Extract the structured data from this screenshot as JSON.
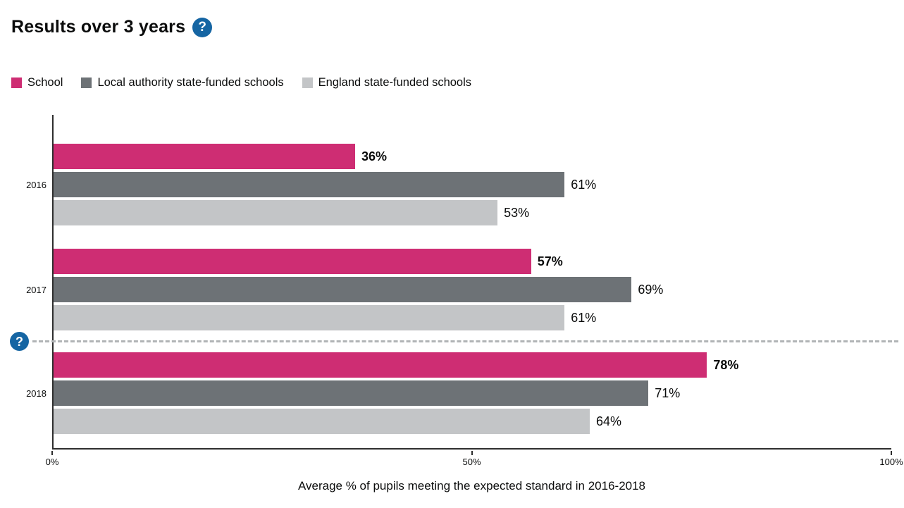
{
  "title": "Results over 3 years",
  "icons": {
    "help_glyph": "?"
  },
  "colors": {
    "accent_blue": "#1565a3",
    "text": "#0b0c0c",
    "axis": "#2e2e2e",
    "separator_gray": "#b1b4b6"
  },
  "legend": [
    {
      "label": "School",
      "color": "#ce2d73"
    },
    {
      "label": "Local authority state-funded schools",
      "color": "#6d7276"
    },
    {
      "label": "England state-funded schools",
      "color": "#c3c5c7"
    }
  ],
  "chart_data": {
    "type": "bar",
    "orientation": "horizontal",
    "title": "Results over 3 years",
    "categories": [
      "2016",
      "2017",
      "2018"
    ],
    "series": [
      {
        "name": "School",
        "color": "#ce2d73",
        "values": [
          36,
          57,
          78
        ],
        "value_labels": [
          "36%",
          "57%",
          "78%"
        ],
        "label_bold": true
      },
      {
        "name": "Local authority state-funded schools",
        "color": "#6d7276",
        "values": [
          61,
          69,
          71
        ],
        "value_labels": [
          "61%",
          "69%",
          "71%"
        ],
        "label_bold": false
      },
      {
        "name": "England state-funded schools",
        "color": "#c3c5c7",
        "values": [
          53,
          61,
          64
        ],
        "value_labels": [
          "53%",
          "61%",
          "64%"
        ],
        "label_bold": false
      }
    ],
    "xlabel": "Average % of pupils meeting the expected standard in 2016-2018",
    "xlim": [
      0,
      100
    ],
    "xticks": [
      {
        "value": 0,
        "label": "0%"
      },
      {
        "value": 50,
        "label": "50%"
      },
      {
        "value": 100,
        "label": "100%"
      }
    ],
    "grid": false,
    "legend_position": "top",
    "separator_line": {
      "after_category": "2017",
      "style": "dashed",
      "has_help_icon": true
    }
  }
}
